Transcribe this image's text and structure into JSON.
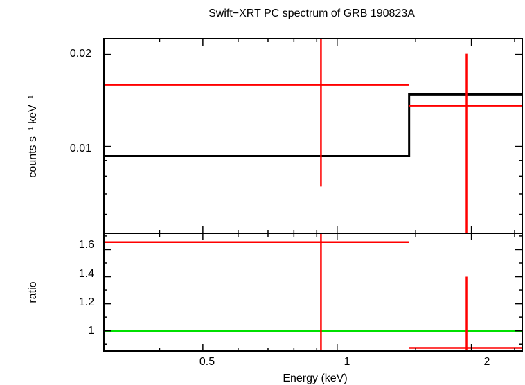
{
  "chart_data": [
    {
      "type": "scatter",
      "title": "Swift−XRT PC spectrum of GRB 190823A",
      "ylabel": "counts s⁻¹ keV⁻¹",
      "ylabels_visible": [
        {
          "value": 0.02,
          "label": "0.02"
        },
        {
          "value": 0.01,
          "label": "0.01"
        }
      ],
      "xscale": "log",
      "yscale": "log",
      "xlim": [
        0.3,
        2.6
      ],
      "ylim": [
        0.0052,
        0.0225
      ],
      "data": {
        "name": "",
        "color": "#ff0000",
        "points": [
          {
            "xlo": 0.3,
            "xhi": 1.45,
            "x": 0.92,
            "y": 0.0159,
            "ylo": 0.0074,
            "yhi": 0.0225
          },
          {
            "xlo": 1.45,
            "xhi": 2.6,
            "x": 1.95,
            "y": 0.0136,
            "ylo": 0.0052,
            "yhi": 0.0201
          }
        ]
      },
      "model": {
        "name": "",
        "color": "#000000",
        "steps": [
          {
            "xlo": 0.3,
            "xhi": 1.45,
            "y": 0.0093
          },
          {
            "xlo": 1.45,
            "xhi": 2.6,
            "y": 0.0148
          }
        ]
      }
    },
    {
      "type": "scatter",
      "ylabel": "ratio",
      "xlabel": "Energy (keV)",
      "xscale": "log",
      "xlim": [
        0.3,
        2.6
      ],
      "ylim": [
        0.85,
        1.72
      ],
      "yticks": [
        {
          "value": 1.6,
          "label": "1.6"
        },
        {
          "value": 1.4,
          "label": "1.4"
        },
        {
          "value": 1.2,
          "label": "1.2"
        },
        {
          "value": 1.0,
          "label": "1"
        }
      ],
      "xticks": [
        {
          "value": 0.5,
          "label": "0.5"
        },
        {
          "value": 1,
          "label": "1"
        },
        {
          "value": 2,
          "label": "2"
        }
      ],
      "reference_line": {
        "y": 1.0,
        "color": "#00e000"
      },
      "data": {
        "name": "",
        "color": "#ff0000",
        "points": [
          {
            "xlo": 0.3,
            "xhi": 1.45,
            "x": 0.92,
            "y": 1.655,
            "ylo": 0.85,
            "yhi": 1.72
          },
          {
            "xlo": 1.45,
            "xhi": 2.6,
            "x": 1.95,
            "y": 0.873,
            "ylo": 0.85,
            "yhi": 1.4
          }
        ]
      }
    }
  ]
}
